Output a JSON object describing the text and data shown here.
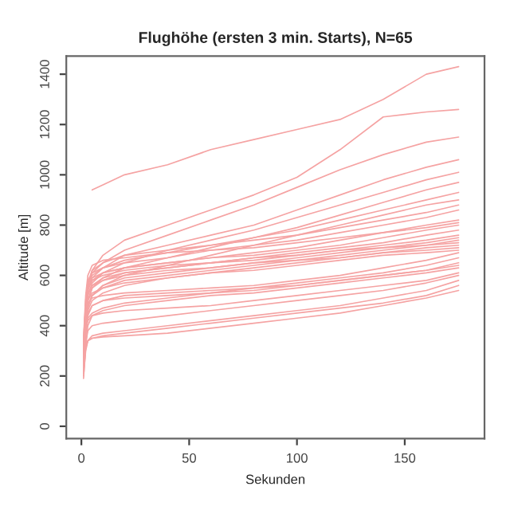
{
  "chart_data": {
    "type": "line",
    "title": "Flughöhe (ersten 3 min. Starts), N=65",
    "xlabel": "Sekunden",
    "ylabel": "Altitude [m]",
    "x": [
      1,
      2,
      3,
      5,
      10,
      20,
      40,
      60,
      80,
      100,
      120,
      140,
      160,
      175
    ],
    "xlim": [
      -7,
      187
    ],
    "ylim": [
      -49,
      1472
    ],
    "xticks": [
      0,
      50,
      100,
      150
    ],
    "yticks": [
      0,
      200,
      400,
      600,
      800,
      1000,
      1200,
      1400
    ],
    "grid": false,
    "legend": false,
    "marker": "none",
    "line_style": "solid",
    "series": [
      {
        "color": "#f5a3a3",
        "values": [
          null,
          null,
          null,
          940,
          960,
          1000,
          1040,
          1100,
          1140,
          1180,
          1220,
          1300,
          1400,
          1430
        ]
      },
      {
        "color": "#f5a3a3",
        "values": [
          300,
          450,
          560,
          620,
          680,
          740,
          800,
          860,
          920,
          990,
          1100,
          1230,
          1250,
          1260
        ]
      },
      {
        "color": "#f5a3a3",
        "values": [
          350,
          480,
          560,
          610,
          650,
          700,
          760,
          820,
          880,
          950,
          1020,
          1080,
          1130,
          1150
        ]
      },
      {
        "color": "#f5a3a3",
        "values": [
          320,
          460,
          540,
          590,
          630,
          680,
          720,
          760,
          800,
          860,
          920,
          980,
          1030,
          1060
        ]
      },
      {
        "color": "#f5a3a3",
        "values": [
          280,
          440,
          520,
          570,
          610,
          650,
          700,
          740,
          780,
          830,
          880,
          930,
          980,
          1010
        ]
      },
      {
        "color": "#f5a3a3",
        "values": [
          260,
          420,
          500,
          550,
          590,
          630,
          670,
          710,
          750,
          790,
          840,
          890,
          940,
          970
        ]
      },
      {
        "color": "#f5a3a3",
        "values": [
          300,
          480,
          560,
          600,
          630,
          660,
          690,
          720,
          750,
          780,
          820,
          860,
          900,
          930
        ]
      },
      {
        "color": "#f5a3a3",
        "values": [
          250,
          400,
          480,
          520,
          560,
          600,
          640,
          680,
          720,
          760,
          800,
          840,
          880,
          900
        ]
      },
      {
        "color": "#f5a3a3",
        "values": [
          330,
          500,
          580,
          610,
          630,
          650,
          670,
          700,
          720,
          740,
          770,
          800,
          830,
          860
        ]
      },
      {
        "color": "#f5a3a3",
        "values": [
          280,
          450,
          540,
          580,
          610,
          630,
          650,
          670,
          690,
          710,
          740,
          770,
          800,
          820
        ]
      },
      {
        "color": "#f5a3a3",
        "values": [
          300,
          470,
          550,
          590,
          610,
          630,
          650,
          670,
          680,
          700,
          720,
          750,
          780,
          800
        ]
      },
      {
        "color": "#f5a3a3",
        "values": [
          240,
          400,
          500,
          550,
          580,
          610,
          630,
          650,
          670,
          690,
          710,
          730,
          760,
          780
        ]
      },
      {
        "color": "#f5a3a3",
        "values": [
          260,
          430,
          520,
          560,
          590,
          610,
          630,
          650,
          660,
          680,
          700,
          720,
          740,
          760
        ]
      },
      {
        "color": "#f5a3a3",
        "values": [
          320,
          480,
          550,
          580,
          600,
          620,
          640,
          650,
          670,
          680,
          700,
          710,
          730,
          750
        ]
      },
      {
        "color": "#f5a3a3",
        "values": [
          220,
          380,
          470,
          520,
          560,
          590,
          610,
          630,
          650,
          670,
          690,
          710,
          720,
          740
        ]
      },
      {
        "color": "#f5a3a3",
        "values": [
          290,
          450,
          530,
          560,
          580,
          600,
          620,
          630,
          650,
          660,
          680,
          700,
          720,
          730
        ]
      },
      {
        "color": "#f5a3a3",
        "values": [
          250,
          400,
          480,
          520,
          550,
          580,
          600,
          620,
          640,
          660,
          670,
          690,
          710,
          720
        ]
      },
      {
        "color": "#f5a3a3",
        "values": [
          270,
          420,
          500,
          530,
          550,
          570,
          590,
          610,
          630,
          650,
          670,
          690,
          700,
          710
        ]
      },
      {
        "color": "#f5a3a3",
        "values": [
          230,
          380,
          460,
          500,
          530,
          560,
          590,
          610,
          620,
          640,
          660,
          680,
          690,
          700
        ]
      },
      {
        "color": "#f5a3a3",
        "values": [
          300,
          430,
          490,
          510,
          520,
          530,
          540,
          550,
          560,
          580,
          600,
          630,
          660,
          690
        ]
      },
      {
        "color": "#f5a3a3",
        "values": [
          240,
          380,
          450,
          480,
          500,
          520,
          530,
          540,
          550,
          570,
          590,
          610,
          640,
          670
        ]
      },
      {
        "color": "#f5a3a3",
        "values": [
          210,
          360,
          440,
          480,
          500,
          510,
          520,
          530,
          550,
          560,
          580,
          600,
          620,
          650
        ]
      },
      {
        "color": "#f5a3a3",
        "values": [
          260,
          380,
          430,
          450,
          470,
          490,
          510,
          530,
          540,
          560,
          580,
          600,
          620,
          640
        ]
      },
      {
        "color": "#f5a3a3",
        "values": [
          190,
          320,
          400,
          440,
          460,
          480,
          500,
          520,
          530,
          550,
          570,
          590,
          610,
          630
        ]
      },
      {
        "color": "#f5a3a3",
        "values": [
          230,
          330,
          380,
          400,
          410,
          420,
          440,
          460,
          480,
          500,
          520,
          540,
          570,
          600
        ]
      },
      {
        "color": "#f5a3a3",
        "values": [
          200,
          300,
          340,
          360,
          370,
          380,
          400,
          420,
          440,
          460,
          480,
          510,
          540,
          580
        ]
      },
      {
        "color": "#f5a3a3",
        "values": [
          220,
          310,
          340,
          350,
          360,
          370,
          390,
          410,
          430,
          450,
          470,
          490,
          520,
          560
        ]
      },
      {
        "color": "#f5a3a3",
        "values": [
          250,
          320,
          340,
          350,
          355,
          360,
          370,
          390,
          410,
          430,
          450,
          480,
          510,
          540
        ]
      },
      {
        "color": "#f5a3a3",
        "values": [
          280,
          380,
          420,
          440,
          450,
          460,
          470,
          480,
          500,
          520,
          540,
          560,
          580,
          610
        ]
      },
      {
        "color": "#f5a3a3",
        "values": [
          350,
          520,
          600,
          640,
          660,
          670,
          690,
          700,
          710,
          730,
          750,
          770,
          790,
          810
        ]
      },
      {
        "color": "#f5a3a3",
        "values": [
          310,
          490,
          570,
          620,
          650,
          680,
          700,
          720,
          740,
          760,
          790,
          820,
          850,
          880
        ]
      }
    ]
  }
}
